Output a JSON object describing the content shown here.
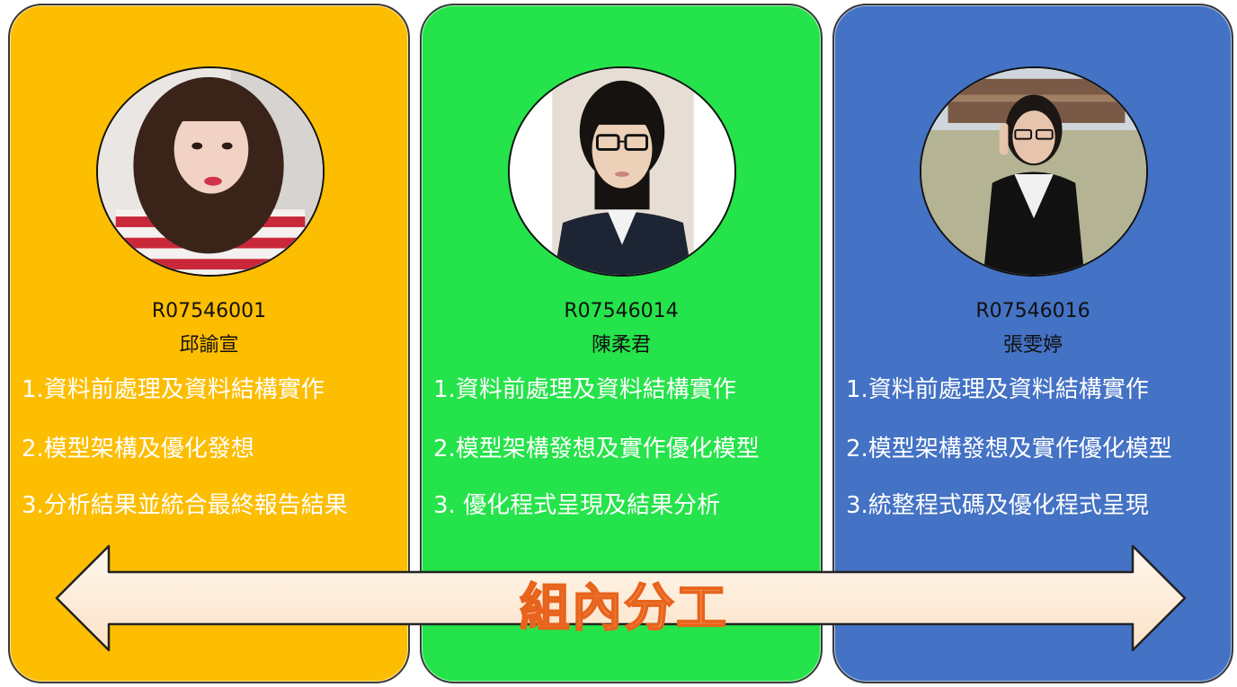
{
  "title": "組內分工",
  "members": [
    {
      "id": "R07546001",
      "name": "邱諭宣",
      "color": "#fdbd00",
      "tasks": [
        "1.資料前處理及資料結構實作",
        "2.模型架構及優化發想",
        "3.分析結果並統合最終報告結果"
      ]
    },
    {
      "id": "R07546014",
      "name": "陳柔君",
      "color": "#25e34a",
      "tasks": [
        "1.資料前處理及資料結構實作",
        "2.模型架構發想及實作優化模型",
        "3. 優化程式呈現及結果分析"
      ]
    },
    {
      "id": "R07546016",
      "name": "張雯婷",
      "color": "#4472c5",
      "tasks": [
        "1.資料前處理及資料結構實作",
        "2.模型架構發想及實作優化模型",
        "3.統整程式碼及優化程式呈現"
      ]
    }
  ]
}
